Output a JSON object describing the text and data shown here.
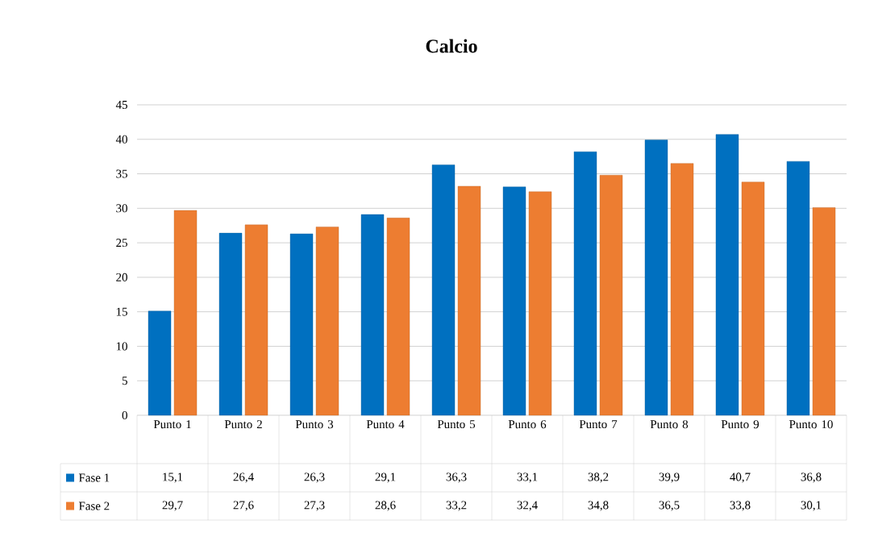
{
  "chart_data": {
    "type": "bar",
    "title": "Calcio",
    "categories": [
      "Punto 1",
      "Punto 2",
      "Punto 3",
      "Punto 4",
      "Punto 5",
      "Punto 6",
      "Punto 7",
      "Punto 8",
      "Punto 9",
      "Punto 10"
    ],
    "series": [
      {
        "name": "Fase 1",
        "color": "#0070c0",
        "values": [
          15.1,
          26.4,
          26.3,
          29.1,
          36.3,
          33.1,
          38.2,
          39.9,
          40.7,
          36.8
        ],
        "value_labels": [
          "15,1",
          "26,4",
          "26,3",
          "29,1",
          "36,3",
          "33,1",
          "38,2",
          "39,9",
          "40,7",
          "36,8"
        ]
      },
      {
        "name": "Fase 2",
        "color": "#ed7d31",
        "values": [
          29.7,
          27.6,
          27.3,
          28.6,
          33.2,
          32.4,
          34.8,
          36.5,
          33.8,
          30.1
        ],
        "value_labels": [
          "29,7",
          "27,6",
          "27,3",
          "28,6",
          "33,2",
          "32,4",
          "34,8",
          "36,5",
          "33,8",
          "30,1"
        ]
      }
    ],
    "ylim": [
      0,
      45
    ],
    "yticks": [
      0,
      5,
      10,
      15,
      20,
      25,
      30,
      35,
      40,
      45
    ],
    "grid": "y",
    "legend": "bottom left"
  }
}
